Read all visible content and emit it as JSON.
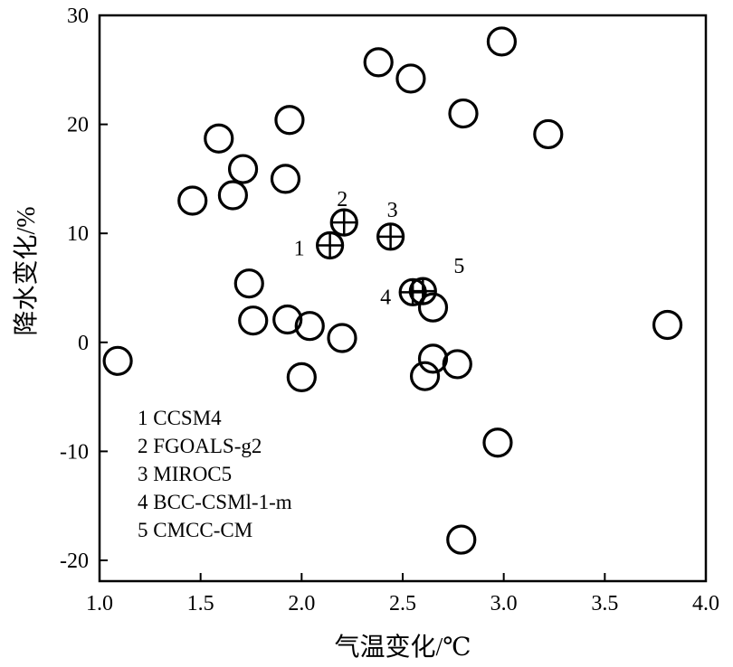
{
  "chart_data": {
    "type": "scatter",
    "xlabel": "气温变化/℃",
    "ylabel": "降水变化/%",
    "xlim": [
      1.0,
      4.0
    ],
    "ylim": [
      -22,
      30
    ],
    "xticks": [
      1.0,
      1.5,
      2.0,
      2.5,
      3.0,
      3.5,
      4.0
    ],
    "xtick_labels": [
      "1.0",
      "1.5",
      "2.0",
      "2.5",
      "3.0",
      "3.5",
      "4.0"
    ],
    "yticks": [
      -20,
      -10,
      0,
      10,
      20,
      30
    ],
    "ytick_labels": [
      "-20",
      "-10",
      "0",
      "10",
      "20",
      "30"
    ],
    "grid": false,
    "legend_position": "bottom-left",
    "marker_other": "open-circle",
    "marker_highlighted": "circle-plus",
    "points": [
      {
        "x": 1.09,
        "y": -1.7
      },
      {
        "x": 1.46,
        "y": 13.0
      },
      {
        "x": 1.59,
        "y": 18.7
      },
      {
        "x": 1.66,
        "y": 13.5
      },
      {
        "x": 1.71,
        "y": 15.9
      },
      {
        "x": 1.74,
        "y": 5.4
      },
      {
        "x": 1.76,
        "y": 2.0
      },
      {
        "x": 1.92,
        "y": 15.0
      },
      {
        "x": 1.93,
        "y": 2.1
      },
      {
        "x": 1.94,
        "y": 20.4
      },
      {
        "x": 2.0,
        "y": -3.2
      },
      {
        "x": 2.04,
        "y": 1.5
      },
      {
        "x": 2.2,
        "y": 0.4
      },
      {
        "x": 2.38,
        "y": 25.7
      },
      {
        "x": 2.54,
        "y": 24.2
      },
      {
        "x": 2.61,
        "y": -3.1
      },
      {
        "x": 2.65,
        "y": -1.5
      },
      {
        "x": 2.65,
        "y": 3.2
      },
      {
        "x": 2.77,
        "y": -2.0
      },
      {
        "x": 2.79,
        "y": -18.1
      },
      {
        "x": 2.8,
        "y": 21.0
      },
      {
        "x": 2.97,
        "y": -9.2
      },
      {
        "x": 2.99,
        "y": 27.6
      },
      {
        "x": 3.22,
        "y": 19.1
      },
      {
        "x": 3.81,
        "y": 1.6
      }
    ],
    "highlighted": [
      {
        "id": "1",
        "x": 2.14,
        "y": 8.9
      },
      {
        "id": "2",
        "x": 2.21,
        "y": 11.0
      },
      {
        "id": "3",
        "x": 2.44,
        "y": 9.7
      },
      {
        "id": "4",
        "x": 2.55,
        "y": 4.6
      },
      {
        "id": "5",
        "x": 2.6,
        "y": 4.7
      }
    ],
    "legend": [
      "1 CCSM4",
      "2 FGOALS-g2",
      "3 MIROC5",
      "4 BCC-CSMl-1-m",
      "5 CMCC-CM"
    ]
  }
}
